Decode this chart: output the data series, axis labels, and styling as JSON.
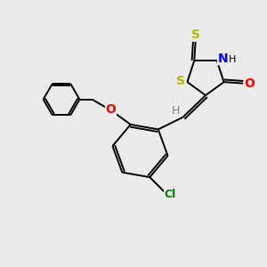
{
  "background_color": "#ebebeb",
  "bond_color": "#000000",
  "atom_colors": {
    "S": "#b8b800",
    "N": "#0000ff",
    "O": "#ff0000",
    "Cl": "#008000",
    "H_gray": "#808080",
    "C": "#000000"
  },
  "figsize": [
    3.0,
    3.0
  ],
  "dpi": 100,
  "lw": 1.4
}
